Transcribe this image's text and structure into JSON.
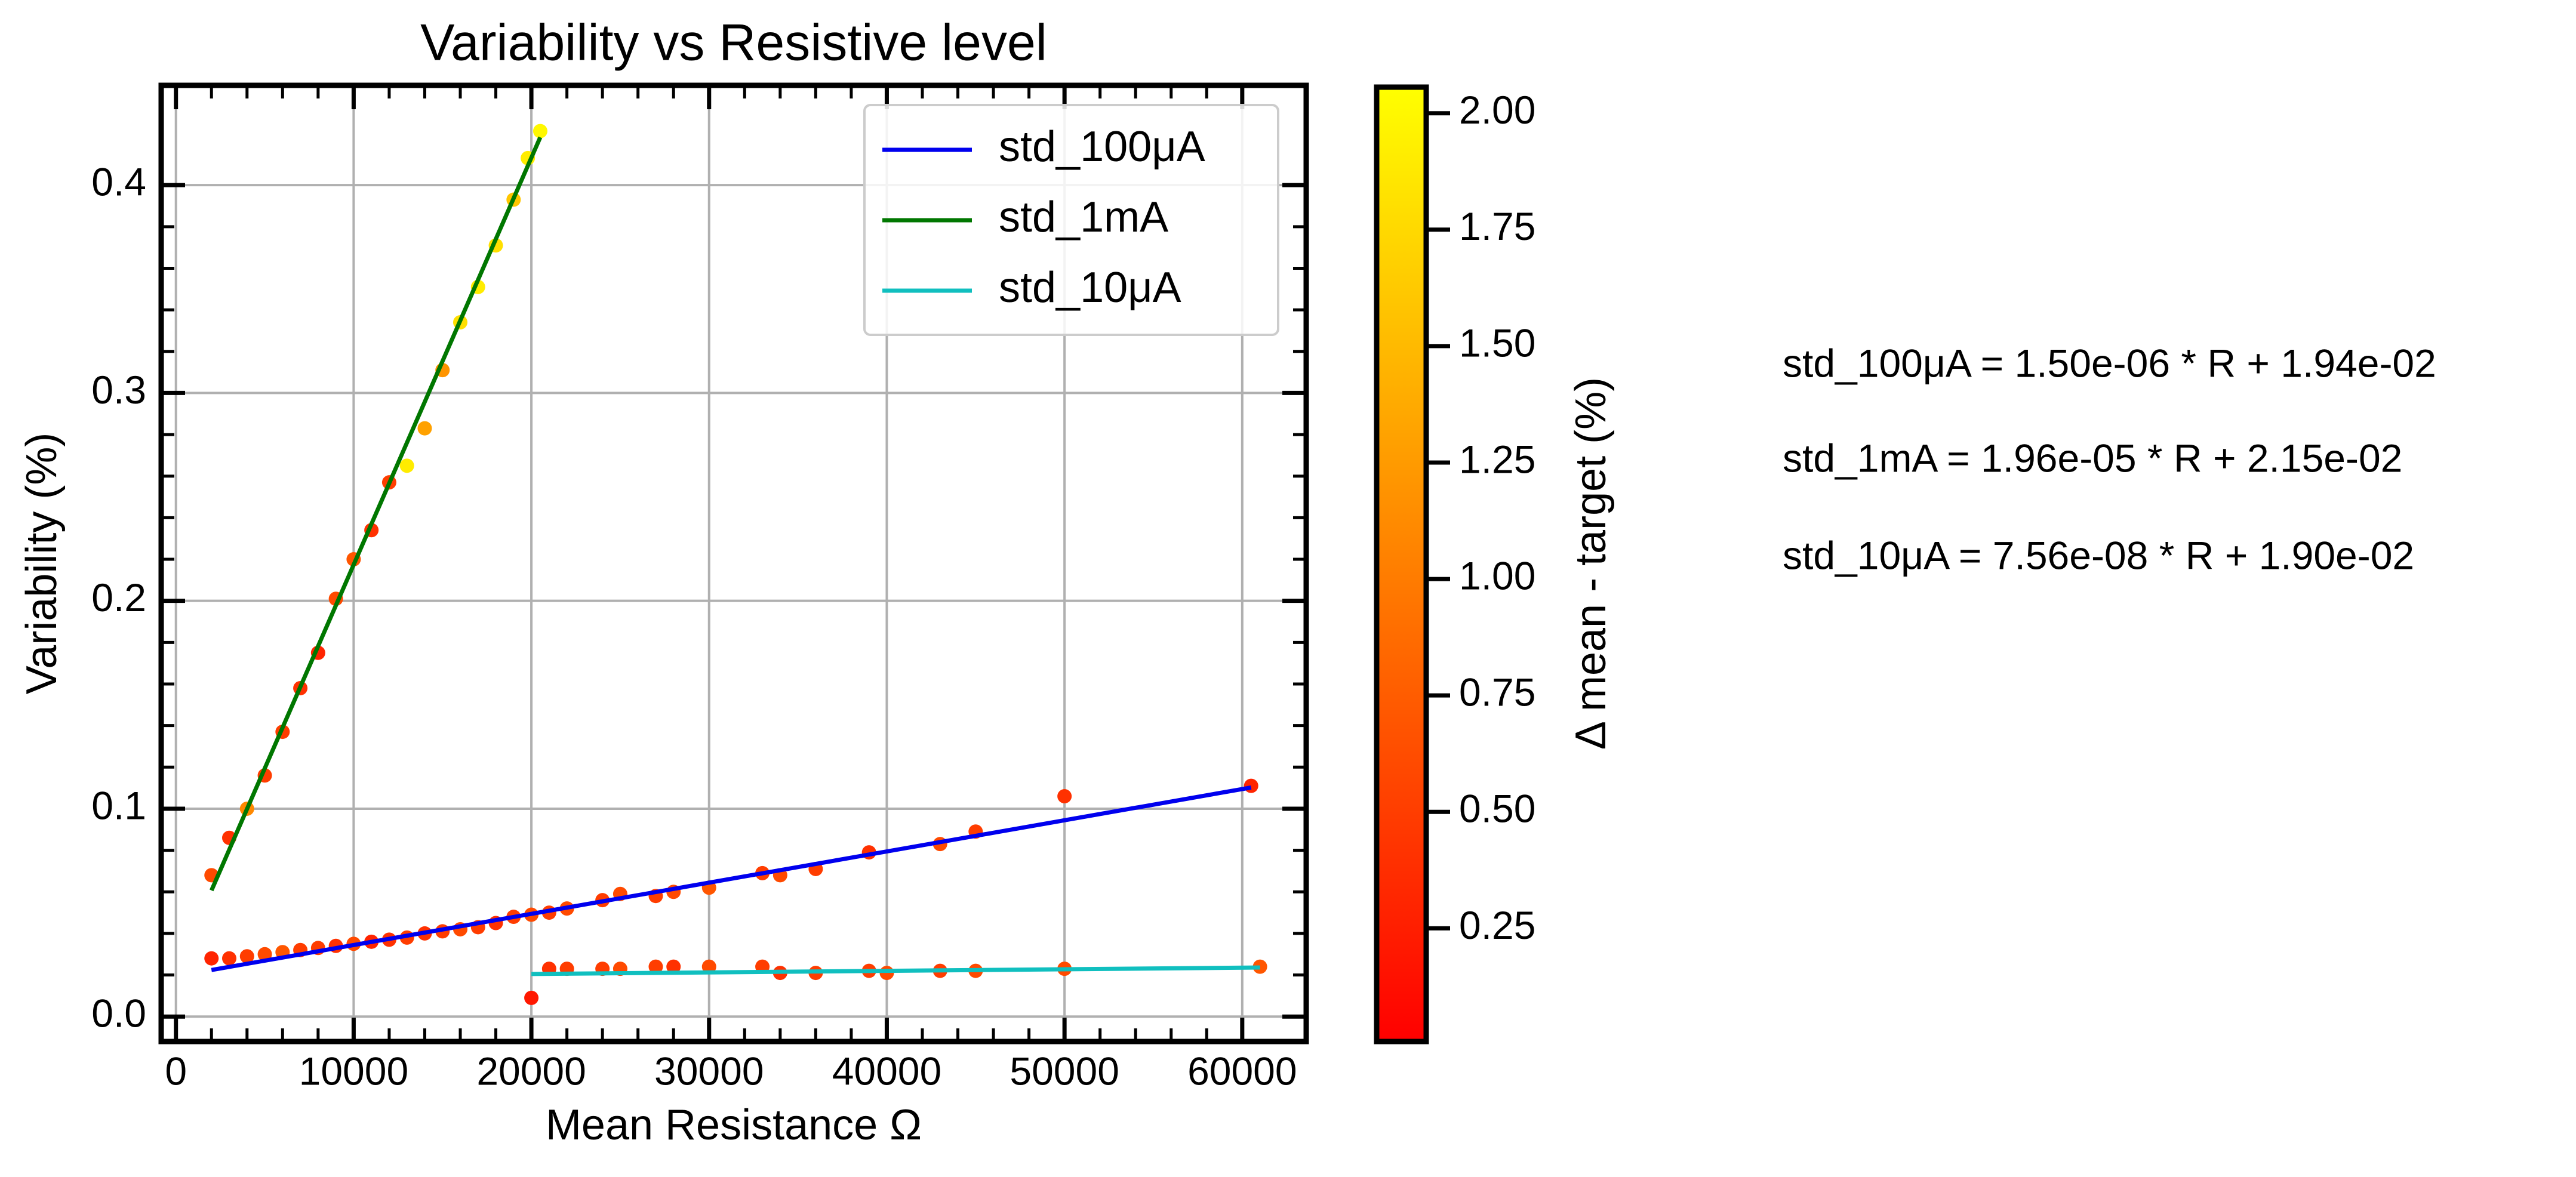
{
  "chart_data": {
    "type": "scatter",
    "title": "Variability vs Resistive level",
    "xlabel": "Mean Resistance Ω",
    "ylabel": "Variability (%)",
    "xlim": [
      -830,
      63600
    ],
    "ylim": [
      -0.012,
      0.448
    ],
    "xticks": [
      0,
      10000,
      20000,
      30000,
      40000,
      50000,
      60000
    ],
    "yticks": [
      {
        "value": 0,
        "label": "0.0"
      },
      0.1,
      0.2,
      0.3,
      0.4
    ],
    "grid": true,
    "legend": "upper right",
    "points": {
      "x": [
        2000,
        3000,
        4000,
        5000,
        6000,
        7000,
        8000,
        9000,
        10000,
        11000,
        12000,
        13000,
        14000,
        15000,
        16000,
        17000,
        18000,
        19000,
        19800,
        20500,
        2000,
        3000,
        4000,
        5000,
        6000,
        7000,
        8000,
        9000,
        10000,
        11000,
        12000,
        13000,
        14000,
        15000,
        16000,
        17000,
        18000,
        19000,
        20000,
        21000,
        22000,
        24000,
        25000,
        27000,
        28000,
        30000,
        33000,
        34000,
        36000,
        39000,
        43000,
        45000,
        50000,
        60500,
        20000,
        21000,
        22000,
        24000,
        25000,
        27000,
        28000,
        30000,
        33000,
        34000,
        36000,
        39000,
        40000,
        43000,
        45000,
        50000,
        61000
      ],
      "y": [
        0.068,
        0.086,
        0.1,
        0.116,
        0.137,
        0.158,
        0.175,
        0.201,
        0.22,
        0.234,
        0.257,
        0.265,
        0.283,
        0.311,
        0.334,
        0.351,
        0.371,
        0.393,
        0.413,
        0.426,
        0.028,
        0.028,
        0.029,
        0.03,
        0.031,
        0.032,
        0.033,
        0.034,
        0.035,
        0.036,
        0.037,
        0.038,
        0.04,
        0.041,
        0.042,
        0.043,
        0.045,
        0.048,
        0.049,
        0.05,
        0.052,
        0.056,
        0.059,
        0.058,
        0.06,
        0.062,
        0.069,
        0.068,
        0.071,
        0.079,
        0.083,
        0.089,
        0.106,
        0.111,
        0.009,
        0.023,
        0.023,
        0.023,
        0.023,
        0.024,
        0.024,
        0.024,
        0.024,
        0.021,
        0.021,
        0.022,
        0.021,
        0.022,
        0.022,
        0.023,
        0.024
      ],
      "c": [
        0.6,
        0.4,
        1.1,
        0.5,
        0.5,
        0.4,
        0.3,
        0.6,
        0.7,
        0.4,
        0.5,
        1.9,
        1.3,
        1.2,
        1.8,
        1.9,
        1.8,
        1.6,
        1.9,
        2.0,
        0.3,
        0.4,
        0.5,
        0.6,
        0.7,
        0.5,
        0.5,
        0.4,
        0.6,
        0.3,
        0.4,
        0.5,
        0.4,
        0.5,
        0.6,
        0.5,
        0.4,
        0.5,
        0.6,
        0.5,
        0.6,
        0.5,
        0.6,
        0.5,
        0.6,
        0.7,
        0.5,
        0.6,
        0.5,
        0.4,
        0.6,
        0.5,
        0.4,
        0.3,
        0.2,
        0.4,
        0.5,
        0.5,
        0.6,
        0.5,
        0.4,
        0.6,
        0.5,
        0.4,
        0.5,
        0.5,
        0.6,
        0.5,
        0.6,
        0.6,
        0.7
      ]
    },
    "series": [
      {
        "name": "std_100μA",
        "color": "#0000ee",
        "x": [
          2000,
          60500
        ],
        "values": [
          0.0224,
          0.1102
        ]
      },
      {
        "name": "std_1mA",
        "color": "#007700",
        "x": [
          2000,
          20500
        ],
        "values": [
          0.0607,
          0.423
        ]
      },
      {
        "name": "std_10μA",
        "color": "#10bfbf",
        "x": [
          20000,
          61000
        ],
        "values": [
          0.0205,
          0.0236
        ]
      }
    ],
    "colorbar": {
      "label": "Δ mean - target (%)",
      "clim": [
        0.007,
        2.056
      ],
      "ticks": [
        0.25,
        {
          "value": 0.5,
          "label": "0.50"
        },
        0.75,
        {
          "value": 1.0,
          "label": "1.00"
        },
        1.25,
        {
          "value": 1.5,
          "label": "1.50"
        },
        1.75,
        {
          "value": 2.0,
          "label": "2.00"
        }
      ]
    },
    "annotations": [
      "std_100μA = 1.50e-06 * R + 1.94e-02",
      "std_1mA = 1.96e-05 * R + 2.15e-02",
      "std_10μA = 7.56e-08 * R + 1.90e-02"
    ]
  }
}
